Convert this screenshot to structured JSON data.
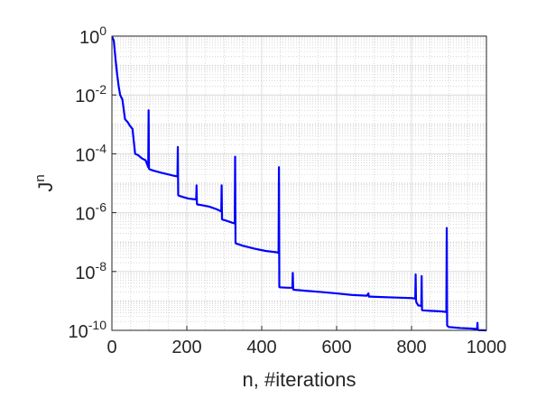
{
  "chart_data": {
    "type": "line",
    "title": "",
    "xlabel": "n, #iterations",
    "ylabel": {
      "base": "J",
      "sup": "n"
    },
    "xlim": [
      0,
      1000
    ],
    "ylim": [
      1e-10,
      1
    ],
    "yscale": "log",
    "grid": true,
    "minor_grid": true,
    "x_ticks": [
      0,
      200,
      400,
      600,
      800,
      1000
    ],
    "x_tick_labels": [
      "0",
      "200",
      "400",
      "600",
      "800",
      "1000"
    ],
    "y_ticks": [
      {
        "value": 1,
        "base": "10",
        "exp": "0"
      },
      {
        "value": 0.01,
        "base": "10",
        "exp": "-2"
      },
      {
        "value": 0.0001,
        "base": "10",
        "exp": "-4"
      },
      {
        "value": 1e-06,
        "base": "10",
        "exp": "-6"
      },
      {
        "value": 1e-08,
        "base": "10",
        "exp": "-8"
      },
      {
        "value": 1e-10,
        "base": "10",
        "exp": "-10"
      }
    ],
    "series": [
      {
        "color": "#0000ff",
        "x": [
          0,
          5,
          10,
          14,
          18,
          22,
          28,
          35,
          42,
          48,
          55,
          62,
          70,
          80,
          90,
          97,
          98,
          99,
          100,
          110,
          130,
          150,
          165,
          175,
          176,
          177,
          178,
          190,
          205,
          215,
          225,
          226,
          227,
          228,
          240,
          260,
          280,
          292,
          293,
          294,
          295,
          300,
          312,
          320,
          328,
          329,
          330,
          331,
          350,
          380,
          410,
          440,
          445,
          446,
          447,
          448,
          470,
          482,
          483,
          484,
          485,
          520,
          560,
          600,
          640,
          680,
          685,
          686,
          690,
          720,
          760,
          800,
          810,
          811,
          812,
          813,
          818,
          826,
          827,
          828,
          829,
          850,
          880,
          893,
          894,
          895,
          896,
          900,
          930,
          960,
          975,
          976,
          977,
          978,
          1000
        ],
        "y": [
          1,
          0.7,
          0.15,
          0.05,
          0.02,
          0.01,
          0.007,
          0.0015,
          0.0012,
          0.0009,
          0.0007,
          0.0001,
          9e-05,
          7e-05,
          6e-05,
          3.5e-05,
          0.003,
          3.2e-05,
          3e-05,
          2.7e-05,
          2.3e-05,
          2e-05,
          1.8e-05,
          1.7e-05,
          0.00017,
          4e-06,
          3.8e-06,
          3.4e-06,
          3e-06,
          2.9e-06,
          2.8e-06,
          8.5e-06,
          2e-06,
          1.9e-06,
          1.8e-06,
          1.6e-06,
          1.3e-06,
          1.1e-06,
          8.5e-06,
          6e-07,
          5.8e-07,
          5.6e-07,
          5e-07,
          4.6e-07,
          4.3e-07,
          8e-05,
          1e-07,
          9e-08,
          7.5e-08,
          6e-08,
          5e-08,
          4.5e-08,
          4.3e-08,
          3.5e-05,
          3e-09,
          2.9e-09,
          2.8e-09,
          2.8e-09,
          9e-09,
          2.5e-09,
          2.4e-09,
          2.2e-09,
          2e-09,
          1.8e-09,
          1.6e-09,
          1.5e-09,
          1.8e-09,
          1.4e-09,
          1.4e-09,
          1.35e-09,
          1.3e-09,
          1.25e-09,
          1.2e-09,
          8e-09,
          1e-09,
          9e-10,
          7e-10,
          6.8e-10,
          7e-09,
          5e-10,
          4.8e-10,
          4.6e-10,
          4.4e-10,
          4.2e-10,
          3e-07,
          1.5e-10,
          1.4e-10,
          1.3e-10,
          1.2e-10,
          1.15e-10,
          1.1e-10,
          1.8e-10,
          1.05e-10,
          1.02e-10,
          1e-10
        ]
      }
    ]
  }
}
